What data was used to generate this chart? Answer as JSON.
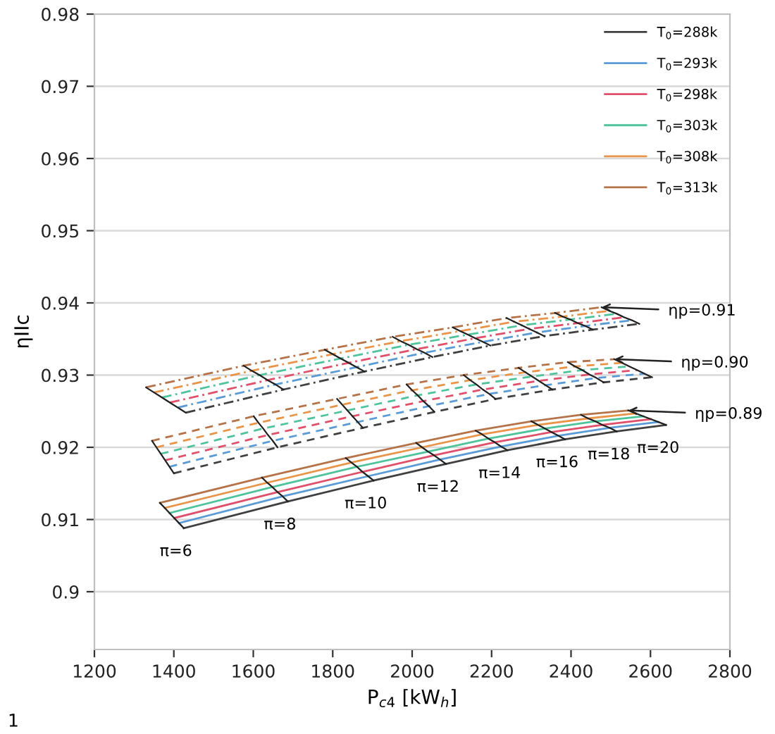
{
  "chart_data": {
    "type": "line",
    "xlabel": "P$_{c4}$ [kW$_{h}$]",
    "ylabel": "ηIIc",
    "xlim": [
      1200,
      2800
    ],
    "xticks": [
      1200,
      1400,
      1600,
      1800,
      2000,
      2200,
      2400,
      2600,
      2800
    ],
    "ylim": [
      0.892,
      0.98
    ],
    "yticks": [
      {
        "value": 0.9,
        "label": "0.9"
      },
      0.91,
      0.92,
      0.93,
      0.94,
      0.95,
      0.96,
      0.97,
      0.98
    ],
    "grid": "y",
    "legend": "top right",
    "marker": "none",
    "series": [
      {
        "name": "T$_{0}$=288k",
        "color": "#404040",
        "line_style": "solid",
        "x": [
          1425,
          1687,
          1903,
          2085,
          2240,
          2385,
          2515,
          2639
        ],
        "values": [
          0.9088,
          0.9125,
          0.9154,
          0.9177,
          0.9196,
          0.9211,
          0.9222,
          0.9231
        ]
      },
      {
        "name": "T$_{0}$=293k",
        "color": "#5b9bd5",
        "line_style": "solid",
        "x": [
          1413,
          1674,
          1889,
          2070,
          2224,
          2368,
          2497,
          2620
        ],
        "values": [
          0.9095,
          0.9132,
          0.916,
          0.9183,
          0.9201,
          0.9216,
          0.9227,
          0.9235
        ]
      },
      {
        "name": "T$_{0}$=298k",
        "color": "#e0506a",
        "line_style": "solid",
        "x": [
          1401,
          1661,
          1875,
          2055,
          2208,
          2351,
          2479,
          2601
        ],
        "values": [
          0.9102,
          0.9138,
          0.9166,
          0.9189,
          0.9207,
          0.9221,
          0.9231,
          0.9239
        ]
      },
      {
        "name": "T$_{0}$=303k",
        "color": "#4fc39a",
        "line_style": "solid",
        "x": [
          1389,
          1648,
          1861,
          2040,
          2192,
          2334,
          2461,
          2582
        ],
        "values": [
          0.9109,
          0.9145,
          0.9173,
          0.9194,
          0.9212,
          0.9226,
          0.9236,
          0.9243
        ]
      },
      {
        "name": "T$_{0}$=308k",
        "color": "#e8954a",
        "line_style": "solid",
        "x": [
          1377,
          1635,
          1847,
          2025,
          2176,
          2317,
          2443,
          2563
        ],
        "values": [
          0.9116,
          0.9151,
          0.9179,
          0.92,
          0.9218,
          0.9231,
          0.924,
          0.9247
        ]
      },
      {
        "name": "T$_{0}$=313k",
        "color": "#b5734a",
        "line_style": "solid",
        "x": [
          1365,
          1622,
          1833,
          2010,
          2160,
          2300,
          2425,
          2544
        ],
        "values": [
          0.9123,
          0.9158,
          0.9185,
          0.9206,
          0.9223,
          0.9236,
          0.9245,
          0.9251
        ]
      },
      {
        "color": "#404040",
        "line_style": "dashed",
        "x": [
          1400,
          1661,
          1876,
          2056,
          2210,
          2353,
          2482,
          2604
        ],
        "values": [
          0.9164,
          0.92,
          0.9227,
          0.9249,
          0.9267,
          0.928,
          0.929,
          0.9297
        ]
      },
      {
        "color": "#5b9bd5",
        "line_style": "dashed",
        "x": [
          1389,
          1649,
          1863,
          2042,
          2194,
          2336,
          2464,
          2585
        ],
        "values": [
          0.9173,
          0.9209,
          0.9235,
          0.9257,
          0.9274,
          0.9286,
          0.9296,
          0.9302
        ]
      },
      {
        "color": "#e0506a",
        "line_style": "dashed",
        "x": [
          1378,
          1637,
          1850,
          2028,
          2178,
          2319,
          2446,
          2566
        ],
        "values": [
          0.9182,
          0.9217,
          0.9243,
          0.9264,
          0.928,
          0.9292,
          0.9301,
          0.9307
        ]
      },
      {
        "color": "#4fc39a",
        "line_style": "dashed",
        "x": [
          1367,
          1625,
          1837,
          2014,
          2162,
          2302,
          2428,
          2547
        ],
        "values": [
          0.9191,
          0.9226,
          0.9251,
          0.9272,
          0.9287,
          0.9298,
          0.9307,
          0.9312
        ]
      },
      {
        "color": "#e8954a",
        "line_style": "dashed",
        "x": [
          1356,
          1613,
          1824,
          2000,
          2146,
          2285,
          2410,
          2528
        ],
        "values": [
          0.92,
          0.9234,
          0.9259,
          0.9279,
          0.9293,
          0.9304,
          0.9312,
          0.9317
        ]
      },
      {
        "color": "#b5734a",
        "line_style": "dashed",
        "x": [
          1345,
          1601,
          1811,
          1986,
          2130,
          2268,
          2392,
          2509
        ],
        "values": [
          0.9209,
          0.9243,
          0.9267,
          0.9287,
          0.93,
          0.931,
          0.9318,
          0.9322
        ]
      },
      {
        "color": "#404040",
        "line_style": "dotted",
        "x": [
          1430,
          1676,
          1880,
          2051,
          2197,
          2333,
          2455,
          2572
        ],
        "values": [
          0.9248,
          0.928,
          0.9305,
          0.9325,
          0.9341,
          0.9354,
          0.9363,
          0.9371
        ]
      },
      {
        "color": "#5b9bd5",
        "line_style": "dotted",
        "x": [
          1410,
          1656,
          1860,
          2031,
          2178,
          2314,
          2436,
          2553
        ],
        "values": [
          0.9255,
          0.9287,
          0.9311,
          0.9331,
          0.9346,
          0.9359,
          0.9368,
          0.9376
        ]
      },
      {
        "color": "#e0506a",
        "line_style": "dotted",
        "x": [
          1390,
          1636,
          1840,
          2011,
          2159,
          2295,
          2417,
          2534
        ],
        "values": [
          0.9262,
          0.9293,
          0.9317,
          0.9336,
          0.9351,
          0.9364,
          0.9372,
          0.938
        ]
      },
      {
        "color": "#4fc39a",
        "line_style": "dotted",
        "x": [
          1370,
          1616,
          1820,
          1991,
          2140,
          2276,
          2398,
          2515
        ],
        "values": [
          0.9269,
          0.93,
          0.9323,
          0.9342,
          0.9356,
          0.9369,
          0.9377,
          0.9385
        ]
      },
      {
        "color": "#e8954a",
        "line_style": "dotted",
        "x": [
          1350,
          1596,
          1800,
          1971,
          2121,
          2257,
          2379,
          2496
        ],
        "values": [
          0.9276,
          0.9306,
          0.9329,
          0.9347,
          0.9361,
          0.9374,
          0.9381,
          0.9389
        ]
      },
      {
        "color": "#b5734a",
        "line_style": "dotted",
        "x": [
          1330,
          1576,
          1780,
          1951,
          2102,
          2238,
          2360,
          2477
        ],
        "values": [
          0.9283,
          0.9313,
          0.9335,
          0.9353,
          0.9366,
          0.9379,
          0.9386,
          0.9394
        ]
      }
    ],
    "annotations": [
      {
        "text": "π=6",
        "x": 1425,
        "y": 0.9088
      },
      {
        "text": "π=8",
        "x": 1687,
        "y": 0.9125
      },
      {
        "text": "π=10",
        "x": 1903,
        "y": 0.9154
      },
      {
        "text": "π=12",
        "x": 2085,
        "y": 0.9177
      },
      {
        "text": "π=14",
        "x": 2240,
        "y": 0.9196
      },
      {
        "text": "π=16",
        "x": 2385,
        "y": 0.9211
      },
      {
        "text": "π=18",
        "x": 2515,
        "y": 0.9222
      },
      {
        "text": "π=20",
        "x": 2639,
        "y": 0.9231
      },
      {
        "text": "ηp=0.91",
        "x": 2477,
        "y": 0.9394
      },
      {
        "text": "ηp=0.90",
        "x": 2509,
        "y": 0.9322
      },
      {
        "text": "ηp=0.89",
        "x": 2544,
        "y": 0.9251
      },
      "1"
    ]
  }
}
